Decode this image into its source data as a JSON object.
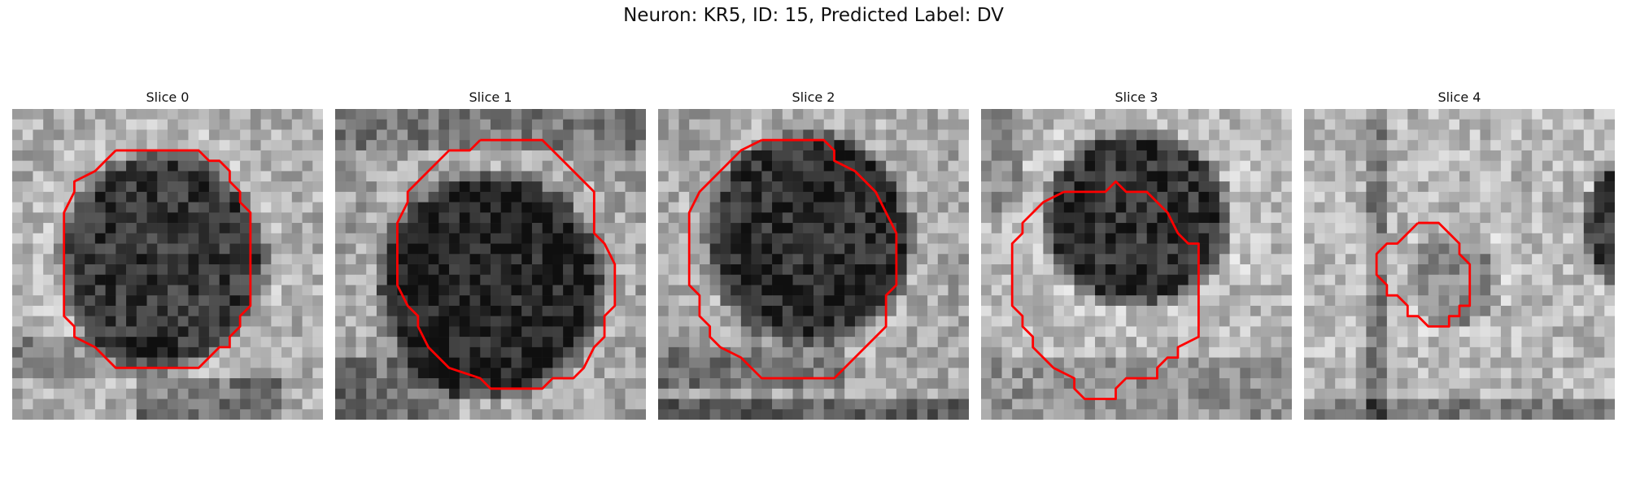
{
  "figure": {
    "title": "Neuron: KR5, ID: 15, Predicted Label: DV",
    "outline_color": "#ff0000"
  },
  "slices": [
    {
      "label": "Slice 0"
    },
    {
      "label": "Slice 1"
    },
    {
      "label": "Slice 2"
    },
    {
      "label": "Slice 3"
    },
    {
      "label": "Slice 4"
    }
  ]
}
